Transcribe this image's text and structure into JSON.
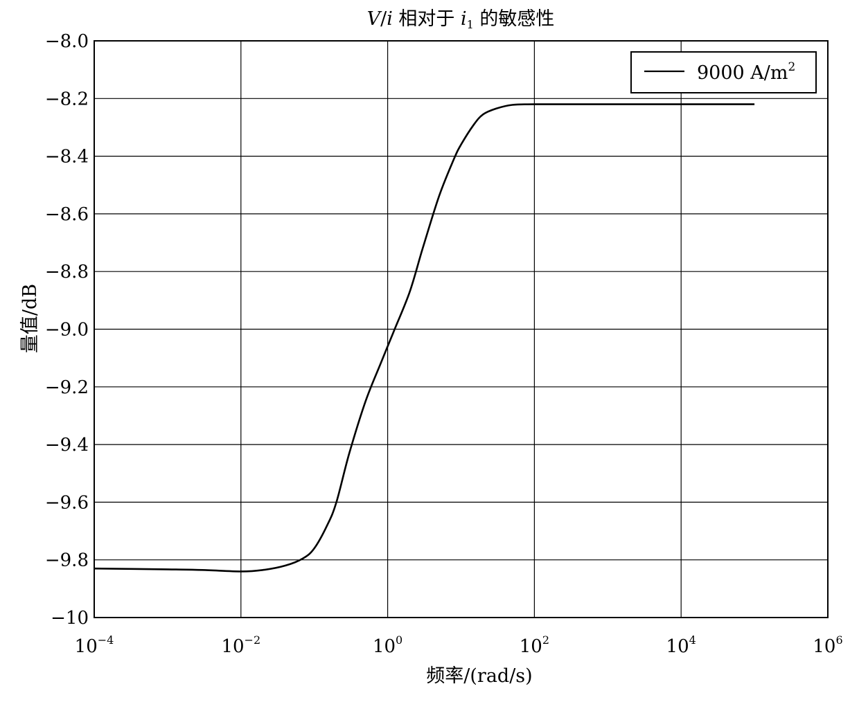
{
  "chart_data": {
    "type": "line",
    "title": "V/i 相对于 i1 的敏感性",
    "title_parts": {
      "v": "V",
      "slash": "/",
      "i": "i",
      "mid": " 相对于 ",
      "i1": "i",
      "sub": "1",
      "tail": " 的敏感性"
    },
    "xlabel": "频率/(rad/s)",
    "ylabel": "量值/dB",
    "x_scale": "log",
    "xlim": [
      0.0001,
      1000000
    ],
    "ylim": [
      -10,
      -8
    ],
    "grid": true,
    "legend_position": "top-right",
    "x_ticks": [
      {
        "base": "10",
        "exp": "−4",
        "value": 0.0001
      },
      {
        "base": "10",
        "exp": "−2",
        "value": 0.01
      },
      {
        "base": "10",
        "exp": "0",
        "value": 1
      },
      {
        "base": "10",
        "exp": "2",
        "value": 100
      },
      {
        "base": "10",
        "exp": "4",
        "value": 10000
      },
      {
        "base": "10",
        "exp": "6",
        "value": 1000000
      }
    ],
    "y_ticks": [
      {
        "label": "−8.0",
        "value": -8.0
      },
      {
        "label": "−8.2",
        "value": -8.2
      },
      {
        "label": "−8.4",
        "value": -8.4
      },
      {
        "label": "−8.6",
        "value": -8.6
      },
      {
        "label": "−8.8",
        "value": -8.8
      },
      {
        "label": "−9.0",
        "value": -9.0
      },
      {
        "label": "−9.2",
        "value": -9.2
      },
      {
        "label": "−9.4",
        "value": -9.4
      },
      {
        "label": "−9.6",
        "value": -9.6
      },
      {
        "label": "−9.8",
        "value": -9.8
      },
      {
        "label": "−10",
        "value": -10
      }
    ],
    "series": [
      {
        "name": "9000 A/m²",
        "legend_text": "9000 A/m",
        "legend_sup": "2",
        "color": "#000000",
        "x": [
          0.0001,
          0.001,
          0.003,
          0.01,
          0.02,
          0.04,
          0.07,
          0.1,
          0.15,
          0.2,
          0.3,
          0.5,
          0.8,
          1.2,
          2,
          3,
          5,
          8,
          10,
          15,
          20,
          30,
          50,
          100,
          1000,
          10000,
          100000
        ],
        "y": [
          -9.83,
          -9.833,
          -9.835,
          -9.84,
          -9.835,
          -9.82,
          -9.795,
          -9.76,
          -9.68,
          -9.6,
          -9.43,
          -9.25,
          -9.12,
          -9.01,
          -8.87,
          -8.72,
          -8.54,
          -8.41,
          -8.36,
          -8.29,
          -8.255,
          -8.235,
          -8.222,
          -8.22,
          -8.22,
          -8.22,
          -8.22
        ]
      }
    ]
  }
}
